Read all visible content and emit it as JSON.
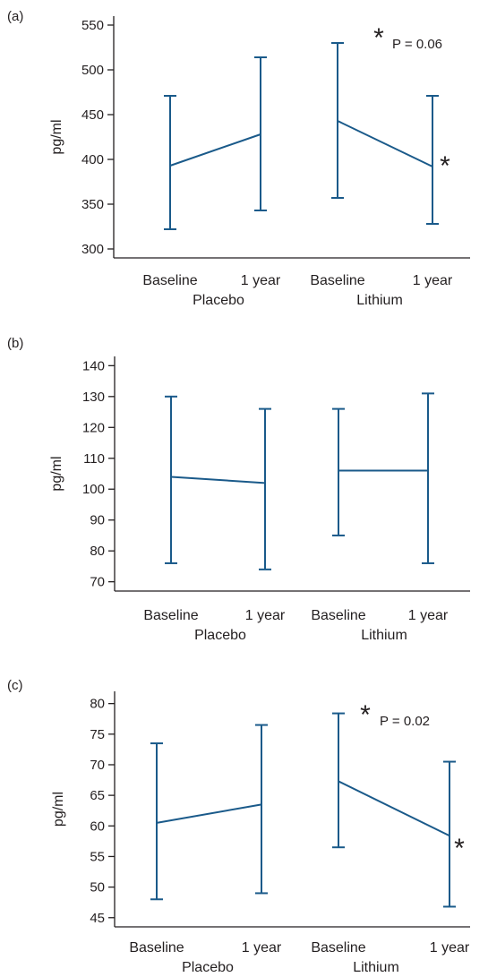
{
  "chart_data": [
    {
      "panel_label": "(a)",
      "type": "line",
      "ylabel": "pg/ml",
      "yticks": [
        300,
        350,
        400,
        450,
        500,
        550
      ],
      "ylim": [
        290,
        560
      ],
      "categories": [
        "Baseline",
        "1 year",
        "Baseline",
        "1 year"
      ],
      "groups": [
        "Placebo",
        "Lithium"
      ],
      "series": [
        {
          "group": "Placebo",
          "means": [
            393,
            428
          ],
          "upper": [
            471,
            514
          ],
          "lower": [
            322,
            343
          ]
        },
        {
          "group": "Lithium",
          "means": [
            443,
            392
          ],
          "upper": [
            530,
            471
          ],
          "lower": [
            357,
            328
          ]
        }
      ],
      "annotations": {
        "stars": [
          "*",
          "*"
        ],
        "p_text": "P = 0.06"
      }
    },
    {
      "panel_label": "(b)",
      "type": "line",
      "ylabel": "pg/ml",
      "yticks": [
        70,
        80,
        90,
        100,
        110,
        120,
        130,
        140
      ],
      "ylim": [
        67,
        143
      ],
      "categories": [
        "Baseline",
        "1 year",
        "Baseline",
        "1 year"
      ],
      "groups": [
        "Placebo",
        "Lithium"
      ],
      "series": [
        {
          "group": "Placebo",
          "means": [
            104,
            102
          ],
          "upper": [
            130,
            126
          ],
          "lower": [
            76,
            74
          ]
        },
        {
          "group": "Lithium",
          "means": [
            106,
            106
          ],
          "upper": [
            126,
            131
          ],
          "lower": [
            85,
            76
          ]
        }
      ],
      "annotations": {
        "stars": [],
        "p_text": ""
      }
    },
    {
      "panel_label": "(c)",
      "type": "line",
      "ylabel": "pg/ml",
      "yticks": [
        45,
        50,
        55,
        60,
        65,
        70,
        75,
        80
      ],
      "ylim": [
        43.5,
        82
      ],
      "categories": [
        "Baseline",
        "1 year",
        "Baseline",
        "1 year"
      ],
      "groups": [
        "Placebo",
        "Lithium"
      ],
      "series": [
        {
          "group": "Placebo",
          "means": [
            60.5,
            63.5
          ],
          "upper": [
            73.5,
            76.5
          ],
          "lower": [
            48,
            49
          ]
        },
        {
          "group": "Lithium",
          "means": [
            67.3,
            58.4
          ],
          "upper": [
            78.4,
            70.5
          ],
          "lower": [
            56.5,
            46.8
          ]
        }
      ],
      "annotations": {
        "stars": [
          "*",
          "*"
        ],
        "p_text": "P = 0.02"
      }
    }
  ]
}
